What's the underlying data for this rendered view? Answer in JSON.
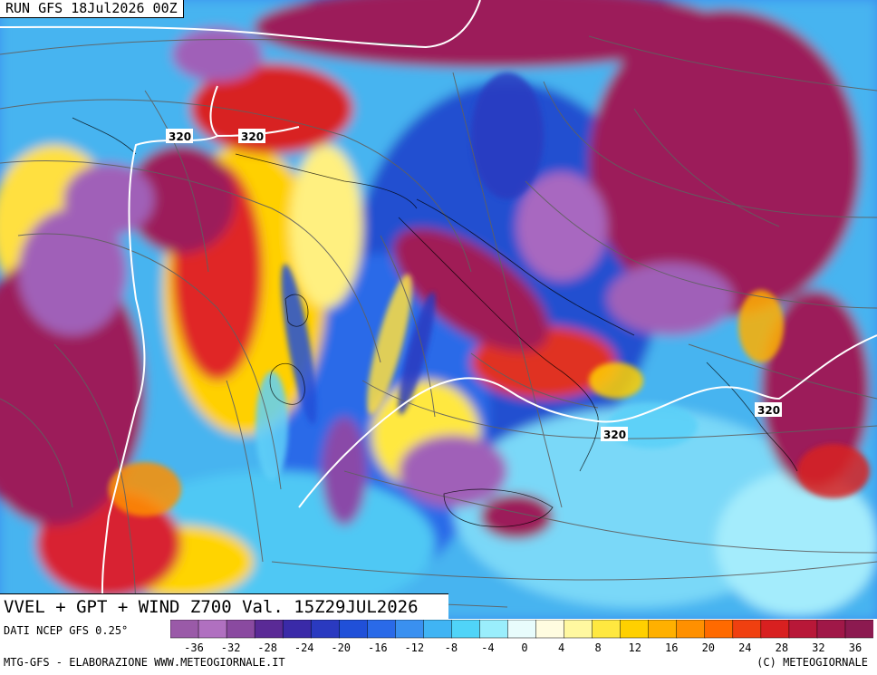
{
  "run_label": "RUN GFS 18Jul2026 00Z",
  "title": "VVEL + GPT + WIND Z700 Val. 15Z29JUL2026",
  "source": "DATI NCEP GFS 0.25°",
  "footer_left": "MTG-GFS - ELABORAZIONE WWW.METEOGIORNALE.IT",
  "footer_right": "(C) METEOGIORNALE",
  "contour_labels": [
    "320",
    "320",
    "320",
    "320"
  ],
  "legend": {
    "ticks": [
      "-36",
      "-32",
      "-28",
      "-24",
      "-20",
      "-16",
      "-12",
      "-8",
      "-4",
      "0",
      "4",
      "8",
      "12",
      "16",
      "20",
      "24",
      "28",
      "32",
      "36"
    ],
    "colors": [
      "#9a5aa8",
      "#b070c0",
      "#8a4aa0",
      "#5a2a96",
      "#3a2aa8",
      "#2a3ac0",
      "#2050d8",
      "#2a6ae8",
      "#3a90f0",
      "#40b4f4",
      "#50d4f8",
      "#9aeefc",
      "#e8fcfc",
      "#fffce0",
      "#fff8a0",
      "#ffe840",
      "#ffd000",
      "#ffb000",
      "#ff9000",
      "#ff6a00",
      "#f04010",
      "#d82020",
      "#b81838",
      "#a01848",
      "#8c1a50"
    ],
    "colors_note": ""
  },
  "colors": {
    "strong_descent": "#9c1e5a",
    "descent": "#d02030",
    "neutral_warm": "#ffe028",
    "neutral_cool": "#40c0f0",
    "ascent": "#2040c8",
    "strong_ascent": "#a060b8",
    "isoline": "#ffffff",
    "streamline": "#606060",
    "coast": "#000000"
  }
}
